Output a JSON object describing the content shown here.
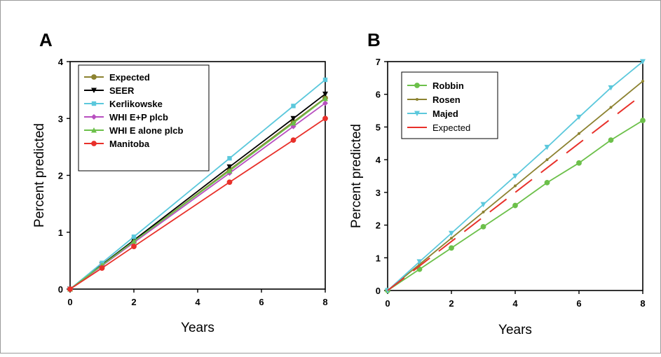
{
  "chart_data": [
    {
      "type": "line",
      "panel_label": "A",
      "xlabel": "Years",
      "ylabel": "Percent predicted",
      "xlim": [
        0,
        8
      ],
      "ylim": [
        0,
        4
      ],
      "xticks": [
        "0",
        "2",
        "4",
        "6",
        "8"
      ],
      "yticks": [
        "0",
        "1",
        "2",
        "3",
        "4"
      ],
      "legend_position": "top-left",
      "legend_bold": true,
      "series": [
        {
          "name": "Expected",
          "color": "#8c8230",
          "marker": "circle",
          "dashed": false,
          "x": [
            0,
            1,
            2,
            5,
            7,
            8
          ],
          "y": [
            0,
            0.42,
            0.84,
            2.1,
            2.94,
            3.36
          ]
        },
        {
          "name": "SEER",
          "color": "#000000",
          "marker": "triangle-down",
          "dashed": false,
          "x": [
            0,
            1,
            2,
            5,
            7,
            8
          ],
          "y": [
            0,
            0.43,
            0.86,
            2.15,
            3.0,
            3.43
          ]
        },
        {
          "name": "Kerlikowske",
          "color": "#5bc8dc",
          "marker": "square",
          "dashed": false,
          "x": [
            0,
            1,
            2,
            5,
            7,
            8
          ],
          "y": [
            0,
            0.46,
            0.92,
            2.3,
            3.22,
            3.68
          ]
        },
        {
          "name": "WHI E+P plcb",
          "color": "#b84fc0",
          "marker": "diamond",
          "dashed": false,
          "x": [
            0,
            1,
            2,
            5,
            7,
            8
          ],
          "y": [
            0,
            0.41,
            0.82,
            2.04,
            2.86,
            3.27
          ]
        },
        {
          "name": "WHI E alone plcb",
          "color": "#6cc04a",
          "marker": "triangle-up",
          "dashed": false,
          "x": [
            0,
            1,
            2,
            5,
            7,
            8
          ],
          "y": [
            0,
            0.42,
            0.84,
            2.08,
            2.92,
            3.35
          ]
        },
        {
          "name": "Manitoba",
          "color": "#e8302a",
          "marker": "circle",
          "dashed": false,
          "x": [
            0,
            1,
            2,
            5,
            7,
            8
          ],
          "y": [
            0,
            0.37,
            0.75,
            1.88,
            2.62,
            3.0
          ]
        }
      ]
    },
    {
      "type": "line",
      "panel_label": "B",
      "xlabel": "Years",
      "ylabel": "Percent predicted",
      "xlim": [
        0,
        8
      ],
      "ylim": [
        0,
        7
      ],
      "xticks": [
        "0",
        "2",
        "4",
        "6",
        "8"
      ],
      "yticks": [
        "0",
        "1",
        "2",
        "3",
        "4",
        "5",
        "6",
        "7"
      ],
      "legend_position": "top-left",
      "legend_bold": false,
      "series": [
        {
          "name": "Robbin",
          "color": "#6cc04a",
          "marker": "circle",
          "dashed": false,
          "bold_label": true,
          "x": [
            0,
            1,
            2,
            3,
            4,
            5,
            6,
            7,
            8
          ],
          "y": [
            0,
            0.65,
            1.3,
            1.95,
            2.6,
            3.3,
            3.9,
            4.6,
            5.2
          ]
        },
        {
          "name": "Rosen",
          "color": "#8c8230",
          "marker": "small-dot",
          "dashed": false,
          "bold_label": true,
          "x": [
            0,
            1,
            2,
            3,
            4,
            5,
            6,
            7,
            8
          ],
          "y": [
            0,
            0.8,
            1.6,
            2.4,
            3.2,
            4.0,
            4.8,
            5.6,
            6.4
          ]
        },
        {
          "name": "Majed",
          "color": "#5bc8dc",
          "marker": "triangle-down",
          "dashed": false,
          "bold_label": true,
          "x": [
            0,
            1,
            2,
            3,
            4,
            5,
            6,
            7,
            8
          ],
          "y": [
            0,
            0.88,
            1.75,
            2.63,
            3.5,
            4.38,
            5.3,
            6.2,
            7.0
          ]
        },
        {
          "name": "Expected",
          "color": "#e8302a",
          "marker": "none",
          "dashed": true,
          "bold_label": false,
          "x": [
            0,
            8
          ],
          "y": [
            0,
            6.0
          ]
        }
      ]
    }
  ]
}
